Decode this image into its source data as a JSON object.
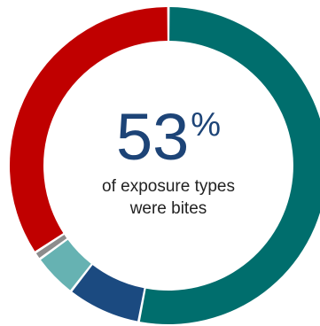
{
  "chart_data": {
    "type": "pie",
    "style": "donut",
    "start": "top",
    "direction": "clockwise",
    "slices": [
      {
        "value": 53,
        "color": "#006e6d"
      },
      {
        "value": 7.5,
        "color": "#1b4a80"
      },
      {
        "value": 4.5,
        "color": "#66b2b2"
      },
      {
        "value": 0.8,
        "color": "#8c8c8c"
      },
      {
        "value": 34.2,
        "color": "#c00000"
      }
    ],
    "center": {
      "value": "53",
      "unit": "%",
      "caption_line1": "of exposure types",
      "caption_line2": "were bites"
    }
  }
}
